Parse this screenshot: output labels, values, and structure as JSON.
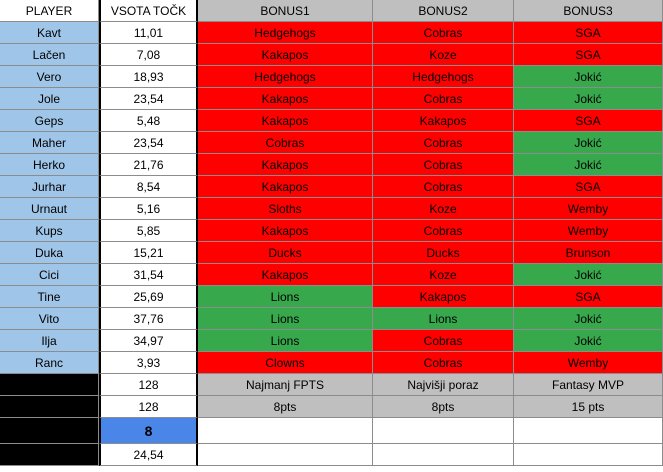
{
  "header": {
    "player": "PLAYER",
    "sum": "VSOTA TOČK",
    "bonus1": "BONUS1",
    "bonus2": "BONUS2",
    "bonus3": "BONUS3"
  },
  "colors": {
    "red": "#ff0000",
    "green": "#38a84c",
    "player_bg": "#9fc5e8",
    "highlight_blue": "#4a86e8",
    "header_grey": "#bfbfbf"
  },
  "rows": [
    {
      "player": "Kavt",
      "sum": "11,01",
      "b1": "Hedgehogs",
      "b1c": "red",
      "b2": "Cobras",
      "b2c": "red",
      "b3": "SGA",
      "b3c": "red"
    },
    {
      "player": "Lačen",
      "sum": "7,08",
      "b1": "Kakapos",
      "b1c": "red",
      "b2": "Koze",
      "b2c": "red",
      "b3": "SGA",
      "b3c": "red"
    },
    {
      "player": "Vero",
      "sum": "18,93",
      "b1": "Hedgehogs",
      "b1c": "red",
      "b2": "Hedgehogs",
      "b2c": "red",
      "b3": "Jokić",
      "b3c": "green"
    },
    {
      "player": "Jole",
      "sum": "23,54",
      "b1": "Kakapos",
      "b1c": "red",
      "b2": "Cobras",
      "b2c": "red",
      "b3": "Jokić",
      "b3c": "green"
    },
    {
      "player": "Geps",
      "sum": "5,48",
      "b1": "Kakapos",
      "b1c": "red",
      "b2": "Kakapos",
      "b2c": "red",
      "b3": "SGA",
      "b3c": "red"
    },
    {
      "player": "Maher",
      "sum": "23,54",
      "b1": "Cobras",
      "b1c": "red",
      "b2": "Cobras",
      "b2c": "red",
      "b3": "Jokić",
      "b3c": "green"
    },
    {
      "player": "Herko",
      "sum": "21,76",
      "b1": "Kakapos",
      "b1c": "red",
      "b2": "Cobras",
      "b2c": "red",
      "b3": "Jokić",
      "b3c": "green"
    },
    {
      "player": "Jurhar",
      "sum": "8,54",
      "b1": "Kakapos",
      "b1c": "red",
      "b2": "Cobras",
      "b2c": "red",
      "b3": "SGA",
      "b3c": "red"
    },
    {
      "player": "Urnaut",
      "sum": "5,16",
      "b1": "Sloths",
      "b1c": "red",
      "b2": "Koze",
      "b2c": "red",
      "b3": "Wemby",
      "b3c": "red"
    },
    {
      "player": "Kups",
      "sum": "5,85",
      "b1": "Kakapos",
      "b1c": "red",
      "b2": "Cobras",
      "b2c": "red",
      "b3": "Wemby",
      "b3c": "red"
    },
    {
      "player": "Duka",
      "sum": "15,21",
      "b1": "Ducks",
      "b1c": "red",
      "b2": "Ducks",
      "b2c": "red",
      "b3": "Brunson",
      "b3c": "red"
    },
    {
      "player": "Cici",
      "sum": "31,54",
      "b1": "Kakapos",
      "b1c": "red",
      "b2": "Koze",
      "b2c": "red",
      "b3": "Jokić",
      "b3c": "green"
    },
    {
      "player": "Tine",
      "sum": "25,69",
      "b1": "Lions",
      "b1c": "green",
      "b2": "Kakapos",
      "b2c": "red",
      "b3": "SGA",
      "b3c": "red"
    },
    {
      "player": "Vito",
      "sum": "37,76",
      "b1": "Lions",
      "b1c": "green",
      "b2": "Lions",
      "b2c": "green",
      "b3": "Jokić",
      "b3c": "green"
    },
    {
      "player": "Ilja",
      "sum": "34,97",
      "b1": "Lions",
      "b1c": "green",
      "b2": "Cobras",
      "b2c": "red",
      "b3": "Jokić",
      "b3c": "green"
    },
    {
      "player": "Ranc",
      "sum": "3,93",
      "b1": "Clowns",
      "b1c": "red",
      "b2": "Cobras",
      "b2c": "red",
      "b3": "Wemby",
      "b3c": "red"
    }
  ],
  "footer": {
    "sum_rows": [
      "128",
      "128",
      "8",
      "24,54"
    ],
    "bonus_titles": [
      "Najmanj FPTS",
      "Najvišji poraz",
      "Fantasy MVP"
    ],
    "bonus_points": [
      "8pts",
      "8pts",
      "15 pts"
    ]
  }
}
